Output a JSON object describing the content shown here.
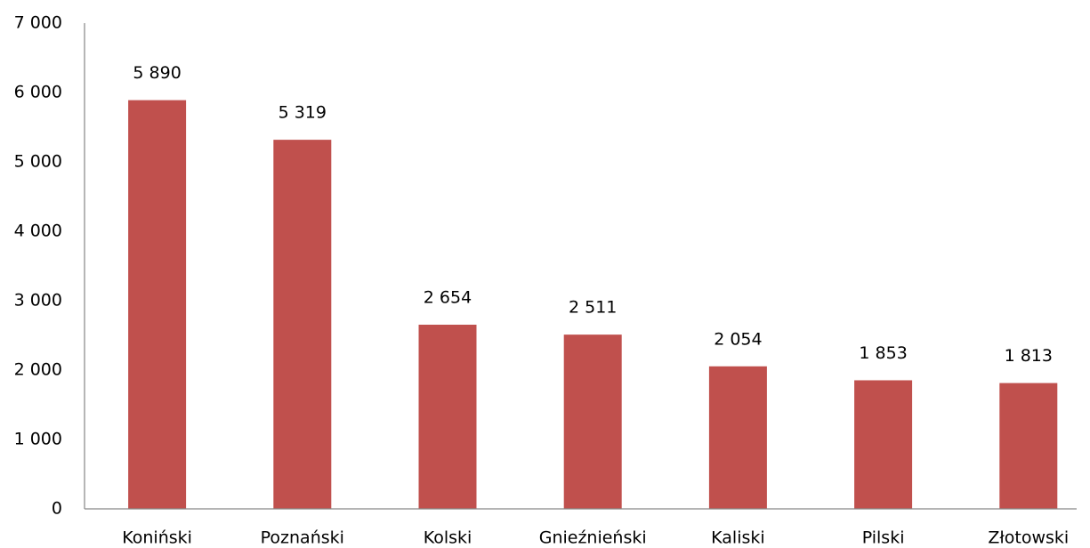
{
  "chart_data": {
    "type": "bar",
    "categories": [
      "Koniński",
      "Poznański",
      "Kolski",
      "Gnieźnieński",
      "Kaliski",
      "Pilski",
      "Złotowski"
    ],
    "values": [
      5890,
      5319,
      2654,
      2511,
      2054,
      1853,
      1813
    ],
    "value_labels": [
      "5 890",
      "5 319",
      "2 654",
      "2 511",
      "2 054",
      "1 853",
      "1 813"
    ],
    "color": "#c0504d",
    "ylim": [
      0,
      7000
    ],
    "yticks": [
      0,
      {
        "value": 1000,
        "label": "1 000"
      },
      {
        "value": 2000,
        "label": "2 000"
      },
      {
        "value": 3000,
        "label": "3 000"
      },
      {
        "value": 4000,
        "label": "4 000"
      },
      {
        "value": 5000,
        "label": "5 000"
      },
      {
        "value": 6000,
        "label": "6 000"
      },
      {
        "value": 7000,
        "label": "7 000"
      }
    ],
    "grid": false
  }
}
